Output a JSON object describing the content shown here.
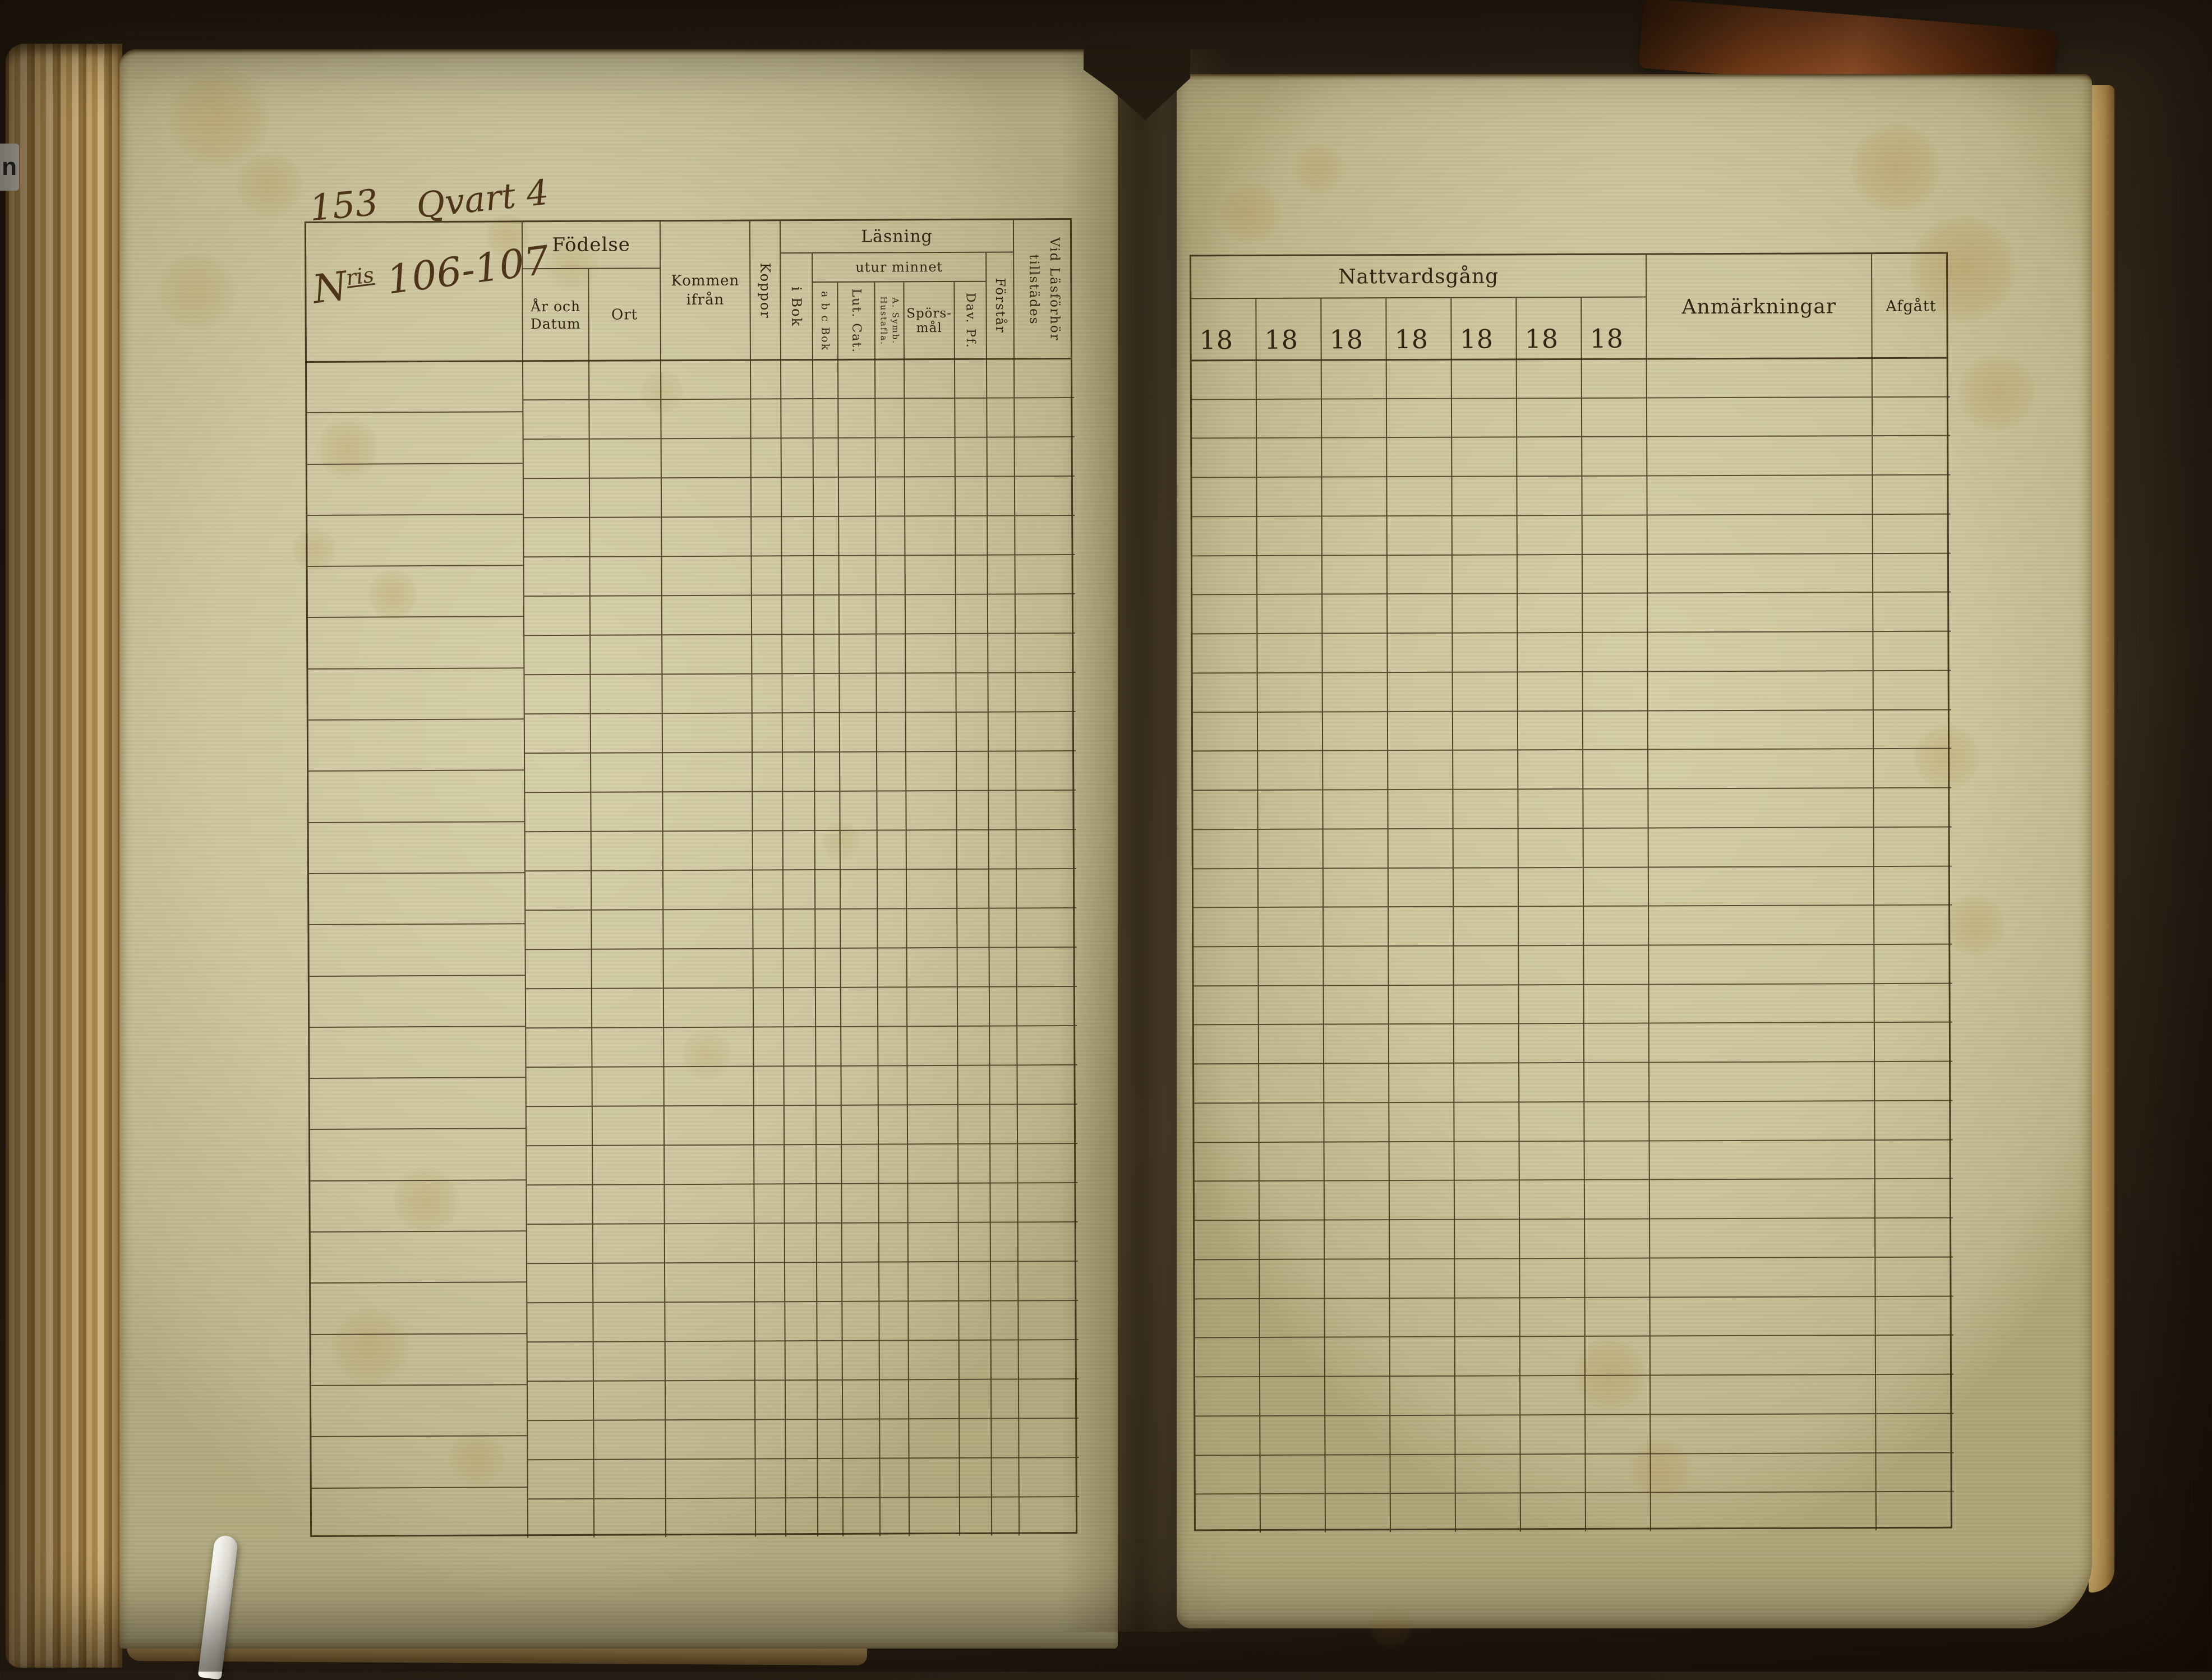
{
  "scene": {
    "description": "Open spread of a blank ruled Swedish parish examination register (husförhörslängd), photographed book",
    "label_scrap_text": "n"
  },
  "left_page": {
    "handwritten": {
      "page_number": "153",
      "section": "Qvart 4",
      "nr_prefix": "N",
      "nr_sup": "ris",
      "nr_range": "106-107"
    },
    "header": {
      "fodelse": "Födelse",
      "ar_och_datum": "År och Datum",
      "ort": "Ort",
      "kommen_ifran": "Kommen ifrån",
      "koppor": "Koppor",
      "lasning": "Läsning",
      "i_bok": "i Bok",
      "utur_minnet": "utur minnet",
      "abc_bok": "a b c Bok",
      "lut_cat": "Lut. Cat.",
      "a_symb": "A. Symb.",
      "hustafla": "Hustafla.",
      "sporsmal_line1": "Spörs-",
      "sporsmal_line2": "mål",
      "dav_pf": "Dav. Pf.",
      "forstar": "Förstår",
      "vid_lasforhor_line1": "Vid Läsförhör",
      "vid_lasforhor_line2": "tillstädes"
    },
    "grid": {
      "name_rows": 23,
      "detail_rows": 30
    }
  },
  "right_page": {
    "header": {
      "nattvardsgang": "Nattvardsgång",
      "year_columns": [
        "18",
        "18",
        "18",
        "18",
        "18",
        "18",
        "18"
      ],
      "anmarkningar": "Anmärkningar",
      "afgatt": "Afgått"
    },
    "grid": {
      "rows": 30
    }
  },
  "colors": {
    "background": "#2a2117",
    "paper": "#cdc6a0",
    "ink_print": "#312612",
    "ink_lines": "#3e2e16",
    "ink_handwriting": "#4e351a",
    "fore_edge": "#b08b4c",
    "pointer_stick": "#f6f4ee",
    "leather": "#7c3f1a"
  }
}
